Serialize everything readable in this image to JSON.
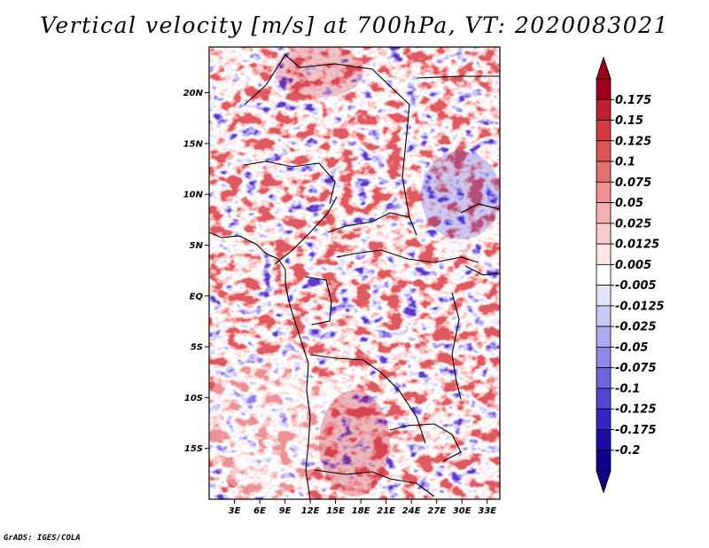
{
  "title": "Vertical velocity [m/s] at 700hPa, VT: 2020083021",
  "credit": "GrADS: IGES/COLA",
  "map": {
    "lat_labels": [
      "20N",
      "15N",
      "10N",
      "5N",
      "EQ",
      "5S",
      "10S",
      "15S"
    ],
    "lon_labels": [
      "3E",
      "6E",
      "9E",
      "12E",
      "15E",
      "18E",
      "21E",
      "24E",
      "27E",
      "30E",
      "33E"
    ],
    "lat_range": [
      -20,
      24.5
    ],
    "lon_range": [
      0,
      34.5
    ]
  },
  "colorbar": {
    "labels": [
      "0.175",
      "0.15",
      "0.125",
      "0.1",
      "0.075",
      "0.05",
      "0.025",
      "0.0125",
      "0.005",
      "-0.005",
      "-0.0125",
      "-0.025",
      "-0.05",
      "-0.075",
      "-0.1",
      "-0.125",
      "-0.175",
      "-0.2"
    ],
    "colors": [
      "#a0001c",
      "#be2030",
      "#d13a3f",
      "#dc5656",
      "#e57272",
      "#ee9090",
      "#f5b0b0",
      "#f9cccc",
      "#fde6e6",
      "#ffffff",
      "#e6e4fb",
      "#ccc8f5",
      "#afa8ef",
      "#9088e6",
      "#6f66dc",
      "#5046cf",
      "#3526bf",
      "#1c0ca8",
      "#100090"
    ],
    "top_color": "#a0001c",
    "bottom_color": "#100090"
  }
}
